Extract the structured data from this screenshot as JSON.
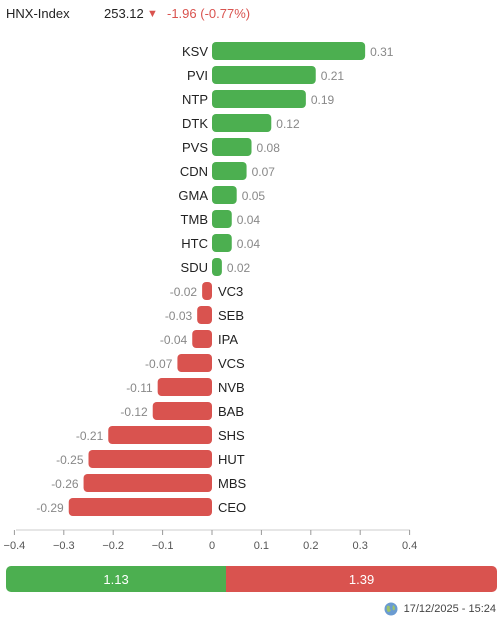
{
  "header": {
    "index_name": "HNX-Index",
    "index_value": "253.12",
    "arrow_icon": "down-arrow-icon",
    "change": "-1.96 (-0.77%)"
  },
  "colors": {
    "up": "#4caf50",
    "down": "#d9534f",
    "value_text": "#888888"
  },
  "chart_data": {
    "type": "bar",
    "orientation": "horizontal",
    "categories": [
      "KSV",
      "PVI",
      "NTP",
      "DTK",
      "PVS",
      "CDN",
      "GMA",
      "TMB",
      "HTC",
      "SDU",
      "VC3",
      "SEB",
      "IPA",
      "VCS",
      "NVB",
      "BAB",
      "SHS",
      "HUT",
      "MBS",
      "CEO"
    ],
    "values": [
      0.31,
      0.21,
      0.19,
      0.12,
      0.08,
      0.07,
      0.05,
      0.04,
      0.04,
      0.02,
      -0.02,
      -0.03,
      -0.04,
      -0.07,
      -0.11,
      -0.12,
      -0.21,
      -0.25,
      -0.26,
      -0.29
    ],
    "value_labels": [
      "0.31",
      "0.21",
      "0.19",
      "0.12",
      "0.08",
      "0.07",
      "0.05",
      "0.04",
      "0.04",
      "0.02",
      "-0.02",
      "-0.03",
      "-0.04",
      "-0.07",
      "-0.11",
      "-0.12",
      "-0.21",
      "-0.25",
      "-0.26",
      "-0.29"
    ],
    "xlim": [
      -0.4,
      0.4
    ],
    "xticks": [
      "−0.4",
      "−0.3",
      "−0.2",
      "−0.1",
      "0",
      "0.1",
      "0.2",
      "0.3",
      "0.4"
    ],
    "xtick_values": [
      -0.4,
      -0.3,
      -0.2,
      -0.1,
      0,
      0.1,
      0.2,
      0.3,
      0.4
    ],
    "grid": false
  },
  "summary": {
    "up_total": "1.13",
    "down_total": "1.39",
    "up_value": 1.13,
    "down_value": 1.39
  },
  "footer": {
    "icon": "globe-icon",
    "timestamp": "17/12/2025 - 15:24"
  }
}
